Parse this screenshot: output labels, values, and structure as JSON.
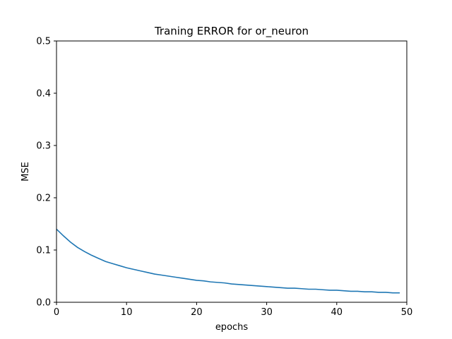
{
  "chart_data": {
    "type": "line",
    "title": "Traning ERROR for or_neuron",
    "xlabel": "epochs",
    "ylabel": "MSE",
    "xlim": [
      0,
      50
    ],
    "ylim": [
      0,
      0.5
    ],
    "xticks": [
      0,
      10,
      20,
      30,
      40,
      50
    ],
    "xtick_labels": [
      "0",
      "10",
      "20",
      "30",
      "40",
      "50"
    ],
    "yticks": [
      0.0,
      0.1,
      0.2,
      0.3,
      0.4,
      0.5
    ],
    "ytick_labels": [
      "0.0",
      "0.1",
      "0.2",
      "0.3",
      "0.4",
      "0.5"
    ],
    "grid": false,
    "series": [
      {
        "color": "#1f77b4",
        "x": [
          0,
          1,
          2,
          3,
          4,
          5,
          6,
          7,
          8,
          9,
          10,
          11,
          12,
          13,
          14,
          15,
          16,
          17,
          18,
          19,
          20,
          21,
          22,
          23,
          24,
          25,
          26,
          27,
          28,
          29,
          30,
          31,
          32,
          33,
          34,
          35,
          36,
          37,
          38,
          39,
          40,
          41,
          42,
          43,
          44,
          45,
          46,
          47,
          48,
          49
        ],
        "y": [
          0.14,
          0.127,
          0.115,
          0.105,
          0.097,
          0.09,
          0.084,
          0.078,
          0.074,
          0.07,
          0.066,
          0.063,
          0.06,
          0.057,
          0.054,
          0.052,
          0.05,
          0.048,
          0.046,
          0.044,
          0.042,
          0.041,
          0.039,
          0.038,
          0.037,
          0.035,
          0.034,
          0.033,
          0.032,
          0.031,
          0.03,
          0.029,
          0.028,
          0.027,
          0.027,
          0.026,
          0.025,
          0.025,
          0.024,
          0.023,
          0.023,
          0.022,
          0.021,
          0.021,
          0.02,
          0.02,
          0.019,
          0.019,
          0.018,
          0.018
        ]
      }
    ]
  }
}
